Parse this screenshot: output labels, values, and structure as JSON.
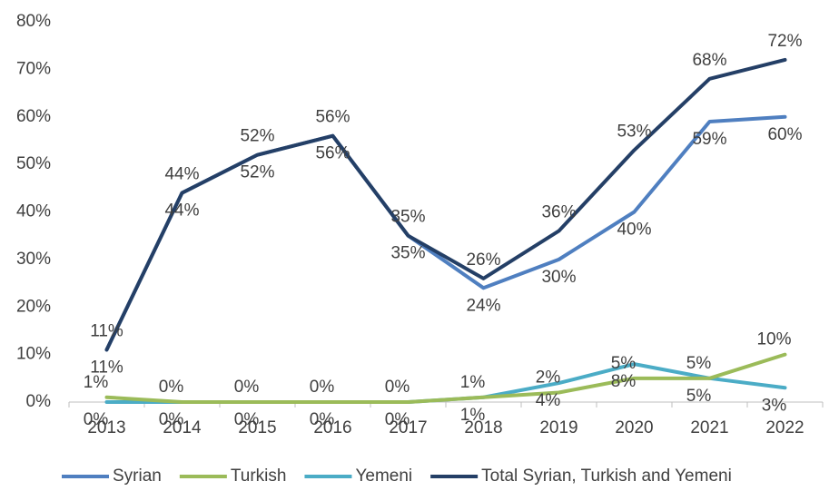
{
  "chart_data": {
    "type": "line",
    "categories": [
      "2013",
      "2014",
      "2015",
      "2016",
      "2017",
      "2018",
      "2019",
      "2020",
      "2021",
      "2022"
    ],
    "ylim": [
      0,
      80
    ],
    "yticks": [
      {
        "value": 0,
        "label": "0%"
      },
      {
        "value": 10,
        "label": "10%"
      },
      {
        "value": 20,
        "label": "20%"
      },
      {
        "value": 30,
        "label": "30%"
      },
      {
        "value": 40,
        "label": "40%"
      },
      {
        "value": 50,
        "label": "50%"
      },
      {
        "value": 60,
        "label": "60%"
      },
      {
        "value": 70,
        "label": "70%"
      },
      {
        "value": 80,
        "label": "80%"
      }
    ],
    "grid": false,
    "legend": "bottom",
    "series": [
      {
        "name": "Syrian",
        "color": "#4f7fc0",
        "values": [
          11,
          44,
          52,
          56,
          35,
          24,
          30,
          40,
          59,
          60
        ],
        "value_labels": [
          "11%",
          "44%",
          "52%",
          "56%",
          "35%",
          "24%",
          "30%",
          "40%",
          "59%",
          "60%"
        ]
      },
      {
        "name": "Turkish",
        "color": "#9bbb59",
        "values": [
          1,
          0,
          0,
          0,
          0,
          1,
          2,
          5,
          5,
          10
        ],
        "value_labels": [
          "1%",
          "0%",
          "0%",
          "0%",
          "0%",
          "1%",
          "2%",
          "5%",
          "5%",
          "10%"
        ]
      },
      {
        "name": "Yemeni",
        "color": "#4bacc6",
        "values": [
          0,
          0,
          0,
          0,
          0,
          1,
          4,
          8,
          5,
          3
        ],
        "value_labels": [
          "0%",
          "0%",
          "0%",
          "0%",
          "0%",
          "1%",
          "4%",
          "8%",
          "5%",
          "3%"
        ]
      },
      {
        "name": "Total Syrian, Turkish and Yemeni",
        "color": "#243f66",
        "values": [
          11,
          44,
          52,
          56,
          35,
          26,
          36,
          53,
          68,
          72
        ],
        "value_labels": [
          "11%",
          "44%",
          "52%",
          "56%",
          "35%",
          "26%",
          "36%",
          "53%",
          "68%",
          "72%"
        ]
      }
    ]
  }
}
